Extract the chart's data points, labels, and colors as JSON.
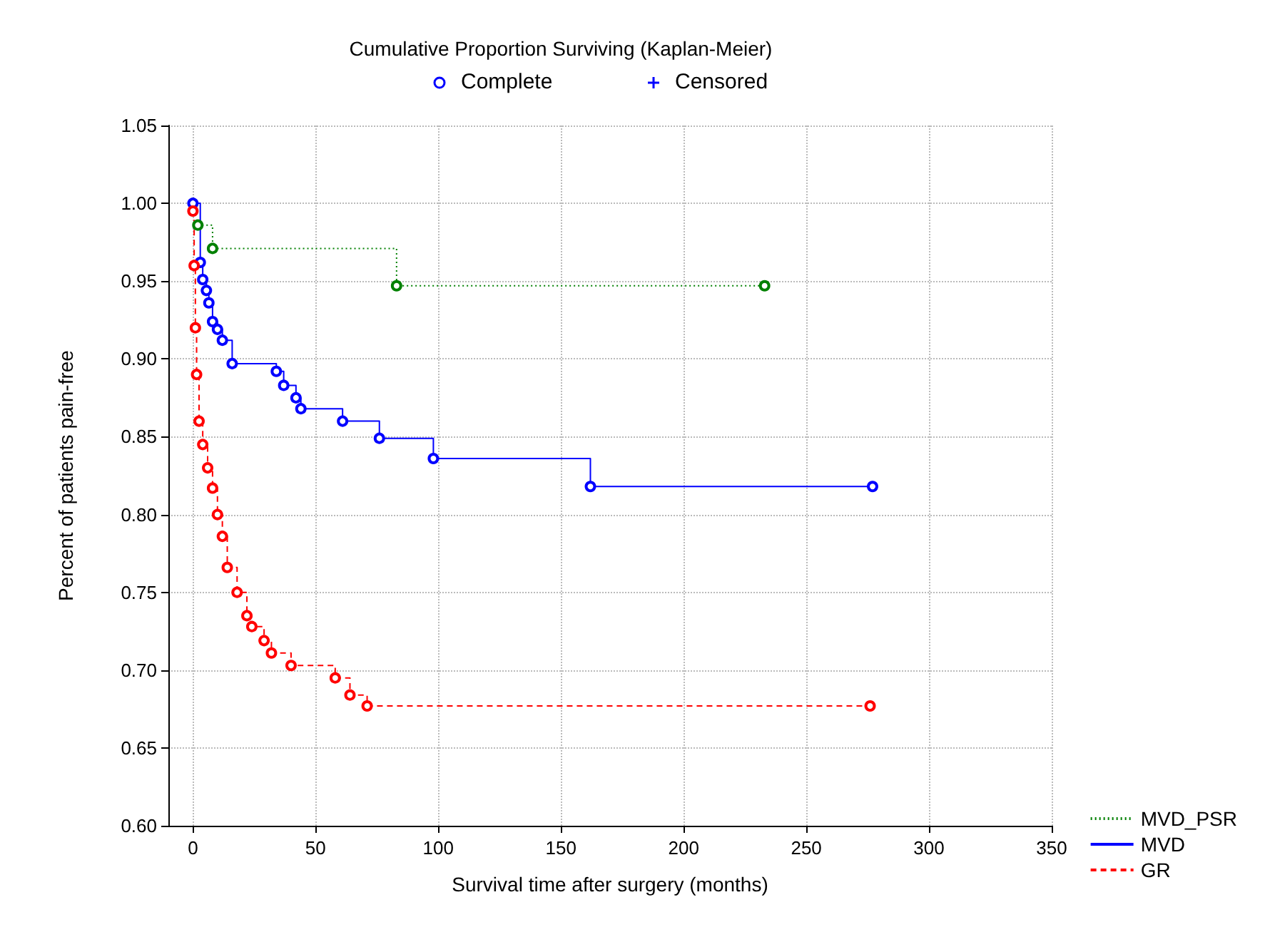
{
  "chart_data": {
    "type": "step",
    "title": "Cumulative Proportion Surviving (Kaplan-Meier)",
    "xlabel": "Survival time after surgery (months)",
    "ylabel": "Percent of patients pain-free",
    "annotations": [
      "Complete",
      "Censored"
    ],
    "series": [
      {
        "name": "MVD_PSR",
        "color": "#008000",
        "line_style": "dotted",
        "x": [
          2,
          8,
          83,
          233
        ],
        "values": [
          0.986,
          0.971,
          0.947,
          0.947
        ]
      },
      {
        "name": "MVD",
        "color": "#0000ff",
        "line_style": "solid",
        "x": [
          0,
          3,
          4,
          5.5,
          6.5,
          8,
          10,
          12,
          16,
          34,
          37,
          42,
          44,
          61,
          76,
          98,
          162,
          277
        ],
        "values": [
          1.0,
          0.962,
          0.951,
          0.944,
          0.936,
          0.924,
          0.919,
          0.912,
          0.897,
          0.892,
          0.883,
          0.875,
          0.868,
          0.86,
          0.849,
          0.836,
          0.818,
          0.818
        ]
      },
      {
        "name": "GR",
        "color": "#ff0000",
        "line_style": "dashed",
        "x": [
          0,
          0.5,
          1,
          1.5,
          2.5,
          4,
          6,
          8,
          10,
          12,
          14,
          18,
          22,
          24,
          29,
          32,
          40,
          58,
          64,
          71,
          276
        ],
        "values": [
          0.995,
          0.96,
          0.92,
          0.89,
          0.86,
          0.845,
          0.83,
          0.817,
          0.8,
          0.786,
          0.766,
          0.75,
          0.735,
          0.728,
          0.719,
          0.711,
          0.703,
          0.695,
          0.684,
          0.677,
          0.677
        ]
      }
    ],
    "xlim": [
      -10,
      350
    ],
    "xticks": [
      0,
      50,
      100,
      150,
      200,
      250,
      300,
      350
    ],
    "ylim": [
      0.6,
      1.05
    ],
    "yticks": [
      {
        "value": 0.6,
        "label": "0.60"
      },
      {
        "value": 0.65,
        "label": "0.65"
      },
      {
        "value": 0.7,
        "label": "0.70"
      },
      {
        "value": 0.75,
        "label": "0.75"
      },
      {
        "value": 0.8,
        "label": "0.80"
      },
      {
        "value": 0.85,
        "label": "0.85"
      },
      {
        "value": 0.9,
        "label": "0.90"
      },
      {
        "value": 0.95,
        "label": "0.95"
      },
      {
        "value": 1,
        "label": "1.00"
      },
      {
        "value": 1.05,
        "label": "1.05"
      }
    ],
    "grid": true,
    "legend": "bottom right",
    "marker": "circle"
  }
}
